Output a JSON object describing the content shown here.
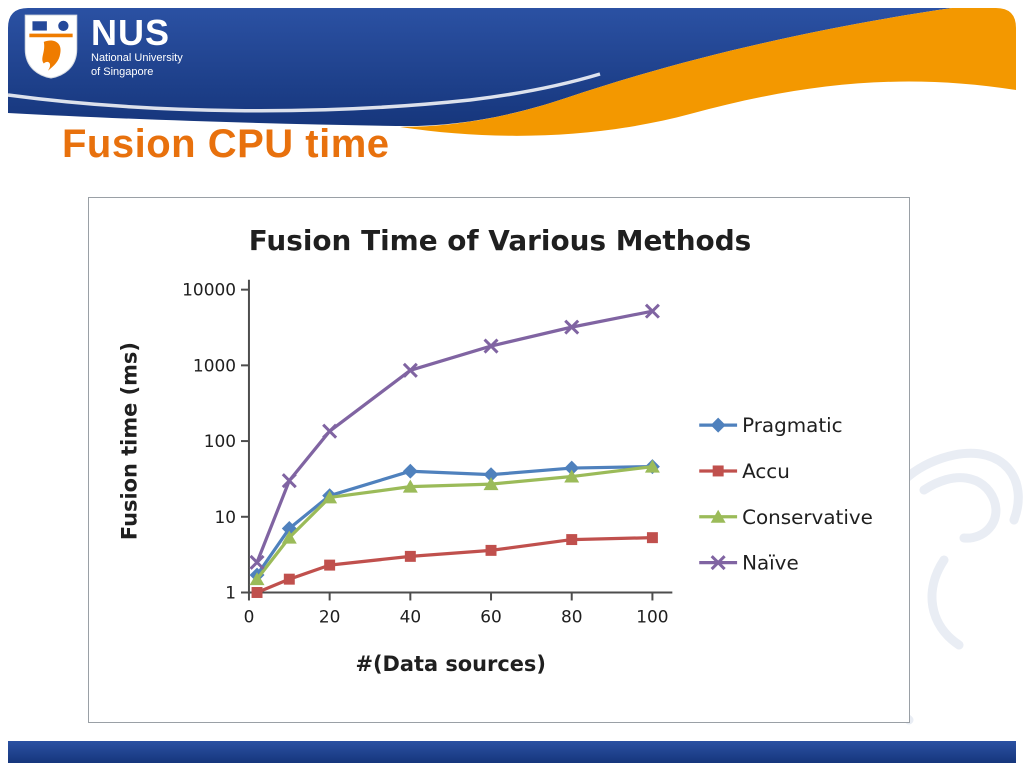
{
  "slide": {
    "title": "Fusion CPU time",
    "logo": {
      "acronym": "NUS",
      "line1": "National University",
      "line2": "of Singapore"
    }
  },
  "theme": {
    "header_blue_top": "#2B51A3",
    "header_blue_bottom": "#16367C",
    "swoosh_orange": "#F39800",
    "title_orange": "#E8710D",
    "chart_border_gray": "#9AA0A6",
    "chart_text": "#1F1F1F"
  },
  "chart_data": {
    "type": "line",
    "title": "Fusion Time of Various Methods",
    "xlabel": "#(Data sources)",
    "ylabel": "Fusion time (ms)",
    "x": [
      2,
      10,
      20,
      40,
      60,
      80,
      100
    ],
    "xlim": [
      0,
      100
    ],
    "x_ticks": [
      0,
      20,
      40,
      60,
      80,
      100
    ],
    "y_scale": "log",
    "ylim": [
      1,
      10000
    ],
    "y_ticks": [
      1,
      10,
      100,
      1000,
      10000
    ],
    "grid": false,
    "legend_position": "right",
    "series": [
      {
        "name": "Pragmatic",
        "color": "#4F81BD",
        "marker": "diamond",
        "values": [
          1.7,
          7,
          19,
          40,
          36,
          44,
          46
        ]
      },
      {
        "name": "Accu",
        "color": "#C0504D",
        "marker": "square",
        "values": [
          1,
          1.5,
          2.3,
          3,
          3.6,
          5,
          5.3
        ]
      },
      {
        "name": "Conservative",
        "color": "#9BBB59",
        "marker": "triangle",
        "values": [
          1.5,
          5.3,
          18,
          25,
          27,
          34,
          46
        ]
      },
      {
        "name": "Naïve",
        "color": "#8064A2",
        "marker": "x",
        "values": [
          2.5,
          30,
          135,
          860,
          1800,
          3200,
          5200
        ]
      }
    ]
  }
}
